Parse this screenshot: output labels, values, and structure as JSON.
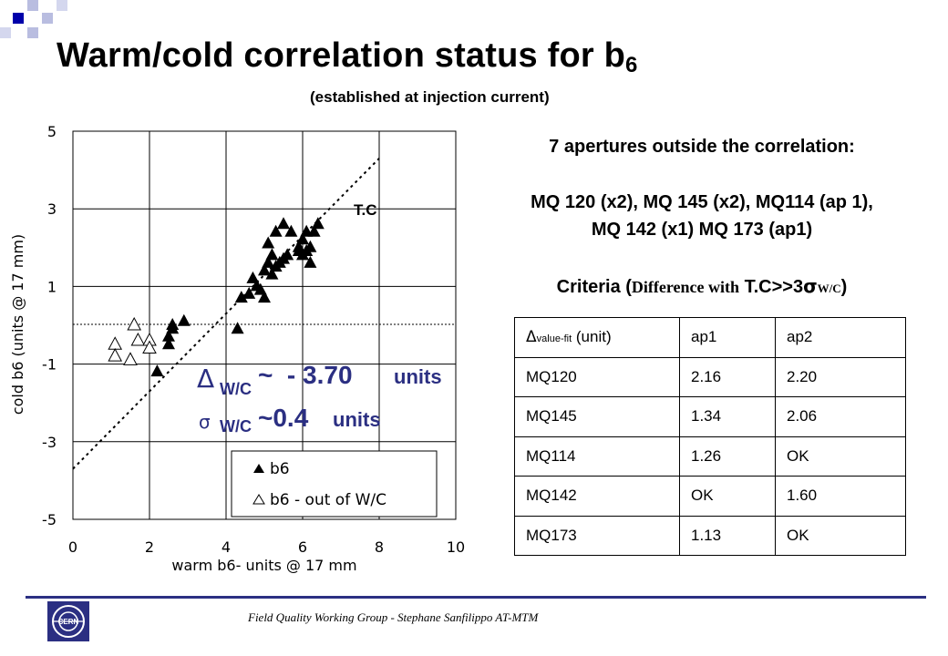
{
  "header": {
    "title": "Warm/cold  correlation status for b",
    "title_sub": "6",
    "subtitle": "(established at injection current)"
  },
  "colors": {
    "accent": "#2b2f82",
    "corner_square": "#0000aa",
    "corner_light": "#b9bde0"
  },
  "chart_data": {
    "type": "scatter",
    "xlabel": "warm b6- units @ 17 mm",
    "ylabel": "cold b6 (units @ 17 mm)",
    "xlim": [
      0,
      10
    ],
    "ylim": [
      -5,
      5
    ],
    "x_ticks": [
      0,
      2,
      4,
      6,
      8,
      10
    ],
    "y_ticks": [
      5,
      3,
      1,
      -1,
      -3,
      -5
    ],
    "grid": true,
    "legend_position": "bottom-right",
    "series": [
      {
        "name": "b6",
        "marker": "filled-triangle",
        "points": [
          [
            2.2,
            -1.2
          ],
          [
            2.5,
            -0.3
          ],
          [
            2.5,
            -0.5
          ],
          [
            2.6,
            -0.1
          ],
          [
            2.6,
            0.0
          ],
          [
            2.9,
            0.1
          ],
          [
            4.3,
            -0.1
          ],
          [
            4.4,
            0.7
          ],
          [
            4.6,
            0.8
          ],
          [
            4.7,
            1.2
          ],
          [
            4.8,
            1.0
          ],
          [
            4.9,
            0.9
          ],
          [
            5.0,
            1.4
          ],
          [
            5.0,
            0.7
          ],
          [
            5.1,
            1.6
          ],
          [
            5.2,
            1.3
          ],
          [
            5.2,
            1.8
          ],
          [
            5.3,
            1.5
          ],
          [
            5.1,
            2.1
          ],
          [
            5.3,
            2.4
          ],
          [
            5.4,
            1.6
          ],
          [
            5.5,
            1.7
          ],
          [
            5.5,
            2.6
          ],
          [
            5.6,
            1.8
          ],
          [
            5.9,
            1.9
          ],
          [
            5.9,
            2.0
          ],
          [
            6.0,
            2.2
          ],
          [
            6.0,
            1.8
          ],
          [
            6.1,
            1.9
          ],
          [
            6.1,
            2.4
          ],
          [
            6.2,
            2.0
          ],
          [
            6.2,
            1.6
          ],
          [
            6.4,
            2.6
          ],
          [
            6.3,
            2.4
          ],
          [
            5.7,
            2.4
          ]
        ]
      },
      {
        "name": "b6 - out of W/C",
        "marker": "open-triangle",
        "points": [
          [
            1.1,
            -0.5
          ],
          [
            1.1,
            -0.8
          ],
          [
            1.5,
            -0.9
          ],
          [
            1.6,
            0.0
          ],
          [
            1.7,
            -0.4
          ],
          [
            2.0,
            -0.4
          ],
          [
            2.0,
            -0.6
          ]
        ]
      }
    ],
    "reference_line": {
      "label": "T.C",
      "x": [
        0,
        8.0
      ],
      "y": [
        -3.7,
        4.3
      ]
    },
    "annotations": [
      {
        "symbol": "Δ",
        "sub": "W/C",
        "value": "~  - 3.70",
        "unit": "units"
      },
      {
        "symbol": "σ",
        "sub": "W/C",
        "value": "~0.4",
        "unit": "units"
      }
    ]
  },
  "right": {
    "heading": "7 apertures outside the correlation:",
    "list_line1": "MQ 120 (x2), MQ 145 (x2), MQ114 (ap 1),",
    "list_line2": "MQ 142 (x1) MQ 173 (ap1)",
    "criteria_prefix": "Criteria (",
    "criteria_mid": "Difference with",
    "criteria_tc": " T.C>>3",
    "criteria_sigma": "σ",
    "criteria_sub": "W/C",
    "criteria_close": ")"
  },
  "table": {
    "header": {
      "delta": "Δ",
      "sub": "value-fit",
      "unit": " (unit)",
      "ap1": "ap1",
      "ap2": "ap2"
    },
    "rows": [
      [
        "MQ120",
        "2.16",
        "2.20"
      ],
      [
        "MQ145",
        "1.34",
        "2.06"
      ],
      [
        "MQ114",
        "1.26",
        "OK"
      ],
      [
        "MQ142",
        "OK",
        "1.60"
      ],
      [
        "MQ173",
        "1.13",
        "OK"
      ]
    ]
  },
  "footer": {
    "text": "Field Quality Working Group -  Stephane Sanfilippo   AT-MTM",
    "logo_text": "CERN"
  }
}
